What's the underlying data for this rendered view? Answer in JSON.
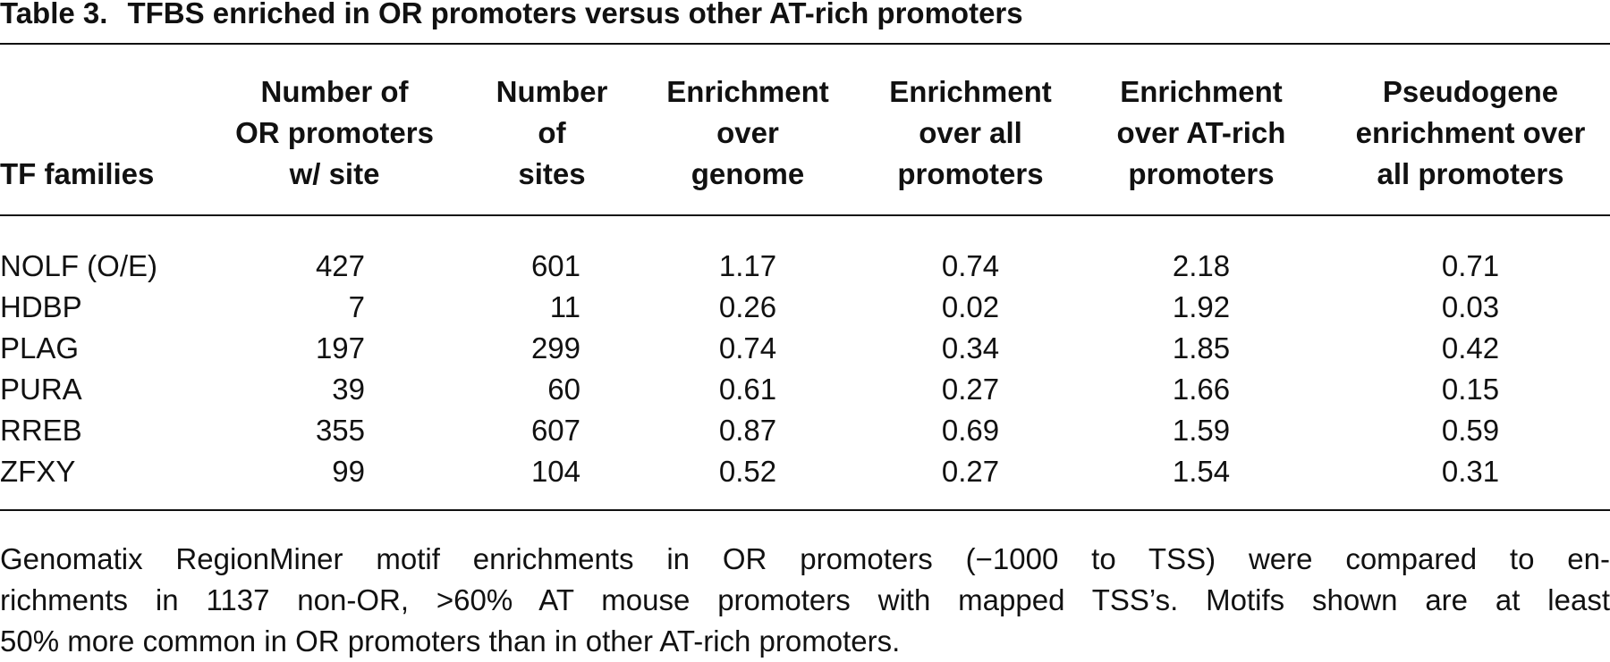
{
  "table": {
    "label": "Table 3.",
    "title": "TFBS enriched in OR promoters versus other AT-rich promoters",
    "header": [
      [
        "TF families"
      ],
      [
        "Number of",
        "OR promoters",
        "w/ site"
      ],
      [
        "Number",
        "of",
        "sites"
      ],
      [
        "Enrichment",
        "over",
        "genome"
      ],
      [
        "Enrichment",
        "over all",
        "promoters"
      ],
      [
        "Enrichment",
        "over AT-rich",
        "promoters"
      ],
      [
        "Pseudogene",
        "enrichment over",
        "all promoters"
      ]
    ],
    "rows": [
      [
        "NOLF (O/E)",
        427,
        601,
        1.17,
        0.74,
        2.18,
        0.71
      ],
      [
        "HDBP",
        7,
        11,
        0.26,
        0.02,
        1.92,
        0.03
      ],
      [
        "PLAG",
        197,
        299,
        0.74,
        0.34,
        1.85,
        0.42
      ],
      [
        "PURA",
        39,
        60,
        0.61,
        0.27,
        1.66,
        0.15
      ],
      [
        "RREB",
        355,
        607,
        0.87,
        0.69,
        1.59,
        0.59
      ],
      [
        "ZFXY",
        99,
        104,
        0.52,
        0.27,
        1.54,
        0.31
      ]
    ],
    "footnote": [
      "Genomatix RegionMiner motif enrichments in OR promoters (−1000 to TSS) were compared to en-",
      "richments in 1137 non-OR, >60% AT mouse promoters with mapped TSS’s. Motifs shown are at least",
      "50% more common in OR promoters than in other AT-rich promoters."
    ]
  }
}
